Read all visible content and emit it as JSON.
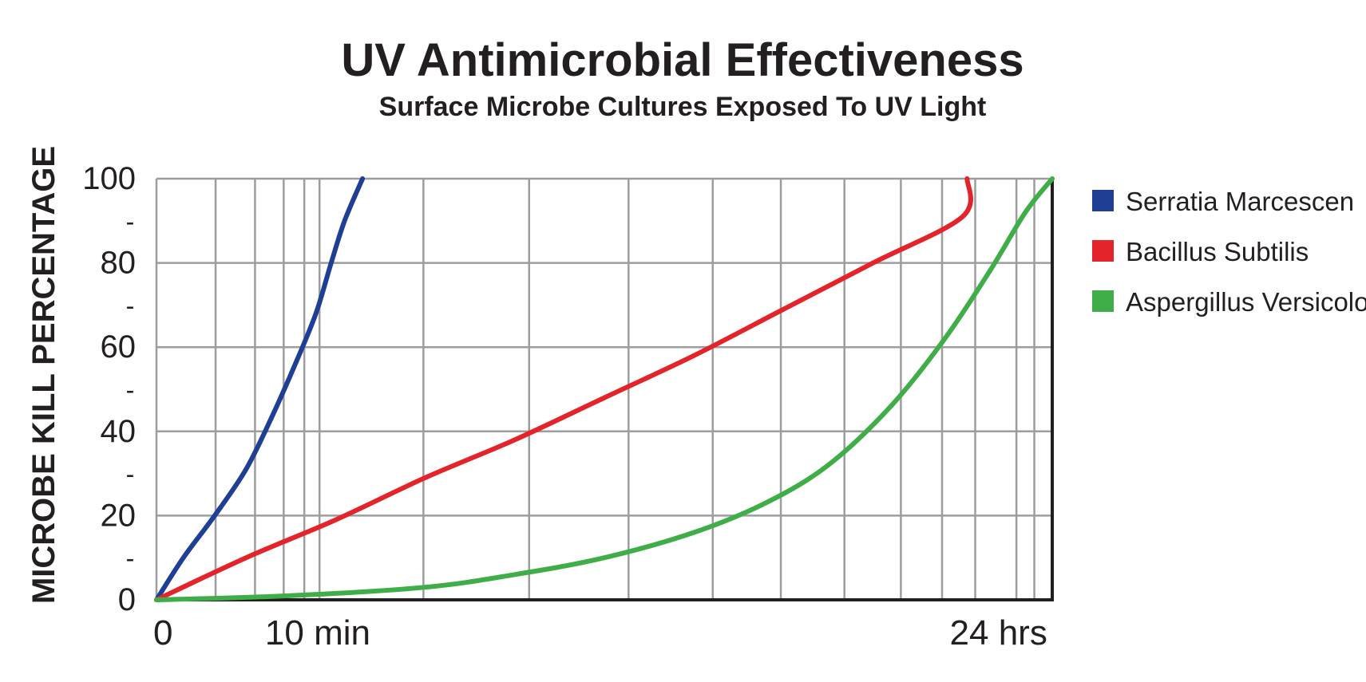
{
  "chart_data": {
    "type": "line",
    "title": "UV Antimicrobial Effectiveness",
    "subtitle": "Surface Microbe Cultures Exposed To UV Light",
    "ylabel": "MICROBE KILL PERCENTAGE",
    "xlabel": "",
    "ylim": [
      0,
      100
    ],
    "xlim": [
      0,
      1
    ],
    "x_scale": "log-like time axis from 0 to 24 hrs",
    "y_ticks": [
      "0",
      "20",
      "40",
      "60",
      "80",
      "100"
    ],
    "y_minor_tick": "-",
    "x_tick_labels": [
      {
        "label": "0",
        "x": 0
      },
      {
        "label": "10 min",
        "x": 0.18
      },
      {
        "label": "24 hrs",
        "x": 0.94
      }
    ],
    "grid": true,
    "legend_position": "right",
    "series": [
      {
        "name": "Serratia Marcescen",
        "color": "#1f3f95",
        "points": [
          [
            0,
            0
          ],
          [
            0.03,
            10
          ],
          [
            0.065,
            20
          ],
          [
            0.1,
            31
          ],
          [
            0.13,
            44
          ],
          [
            0.155,
            56
          ],
          [
            0.178,
            68
          ],
          [
            0.195,
            80
          ],
          [
            0.21,
            90
          ],
          [
            0.23,
            100
          ]
        ]
      },
      {
        "name": "Bacillus Subtilis",
        "color": "#e3242b",
        "points": [
          [
            0,
            0
          ],
          [
            0.1,
            10
          ],
          [
            0.2,
            19
          ],
          [
            0.3,
            29
          ],
          [
            0.4,
            38
          ],
          [
            0.5,
            48
          ],
          [
            0.6,
            58
          ],
          [
            0.7,
            69
          ],
          [
            0.8,
            80
          ],
          [
            0.9,
            91
          ],
          [
            0.905,
            100
          ]
        ]
      },
      {
        "name": "Aspergillus Versicolor",
        "color": "#3fae49",
        "points": [
          [
            0,
            0
          ],
          [
            0.15,
            1
          ],
          [
            0.3,
            3
          ],
          [
            0.4,
            6
          ],
          [
            0.5,
            10
          ],
          [
            0.6,
            16
          ],
          [
            0.68,
            23
          ],
          [
            0.75,
            32
          ],
          [
            0.82,
            46
          ],
          [
            0.88,
            62
          ],
          [
            0.93,
            78
          ],
          [
            0.97,
            92
          ],
          [
            1.0,
            100
          ]
        ]
      }
    ]
  }
}
